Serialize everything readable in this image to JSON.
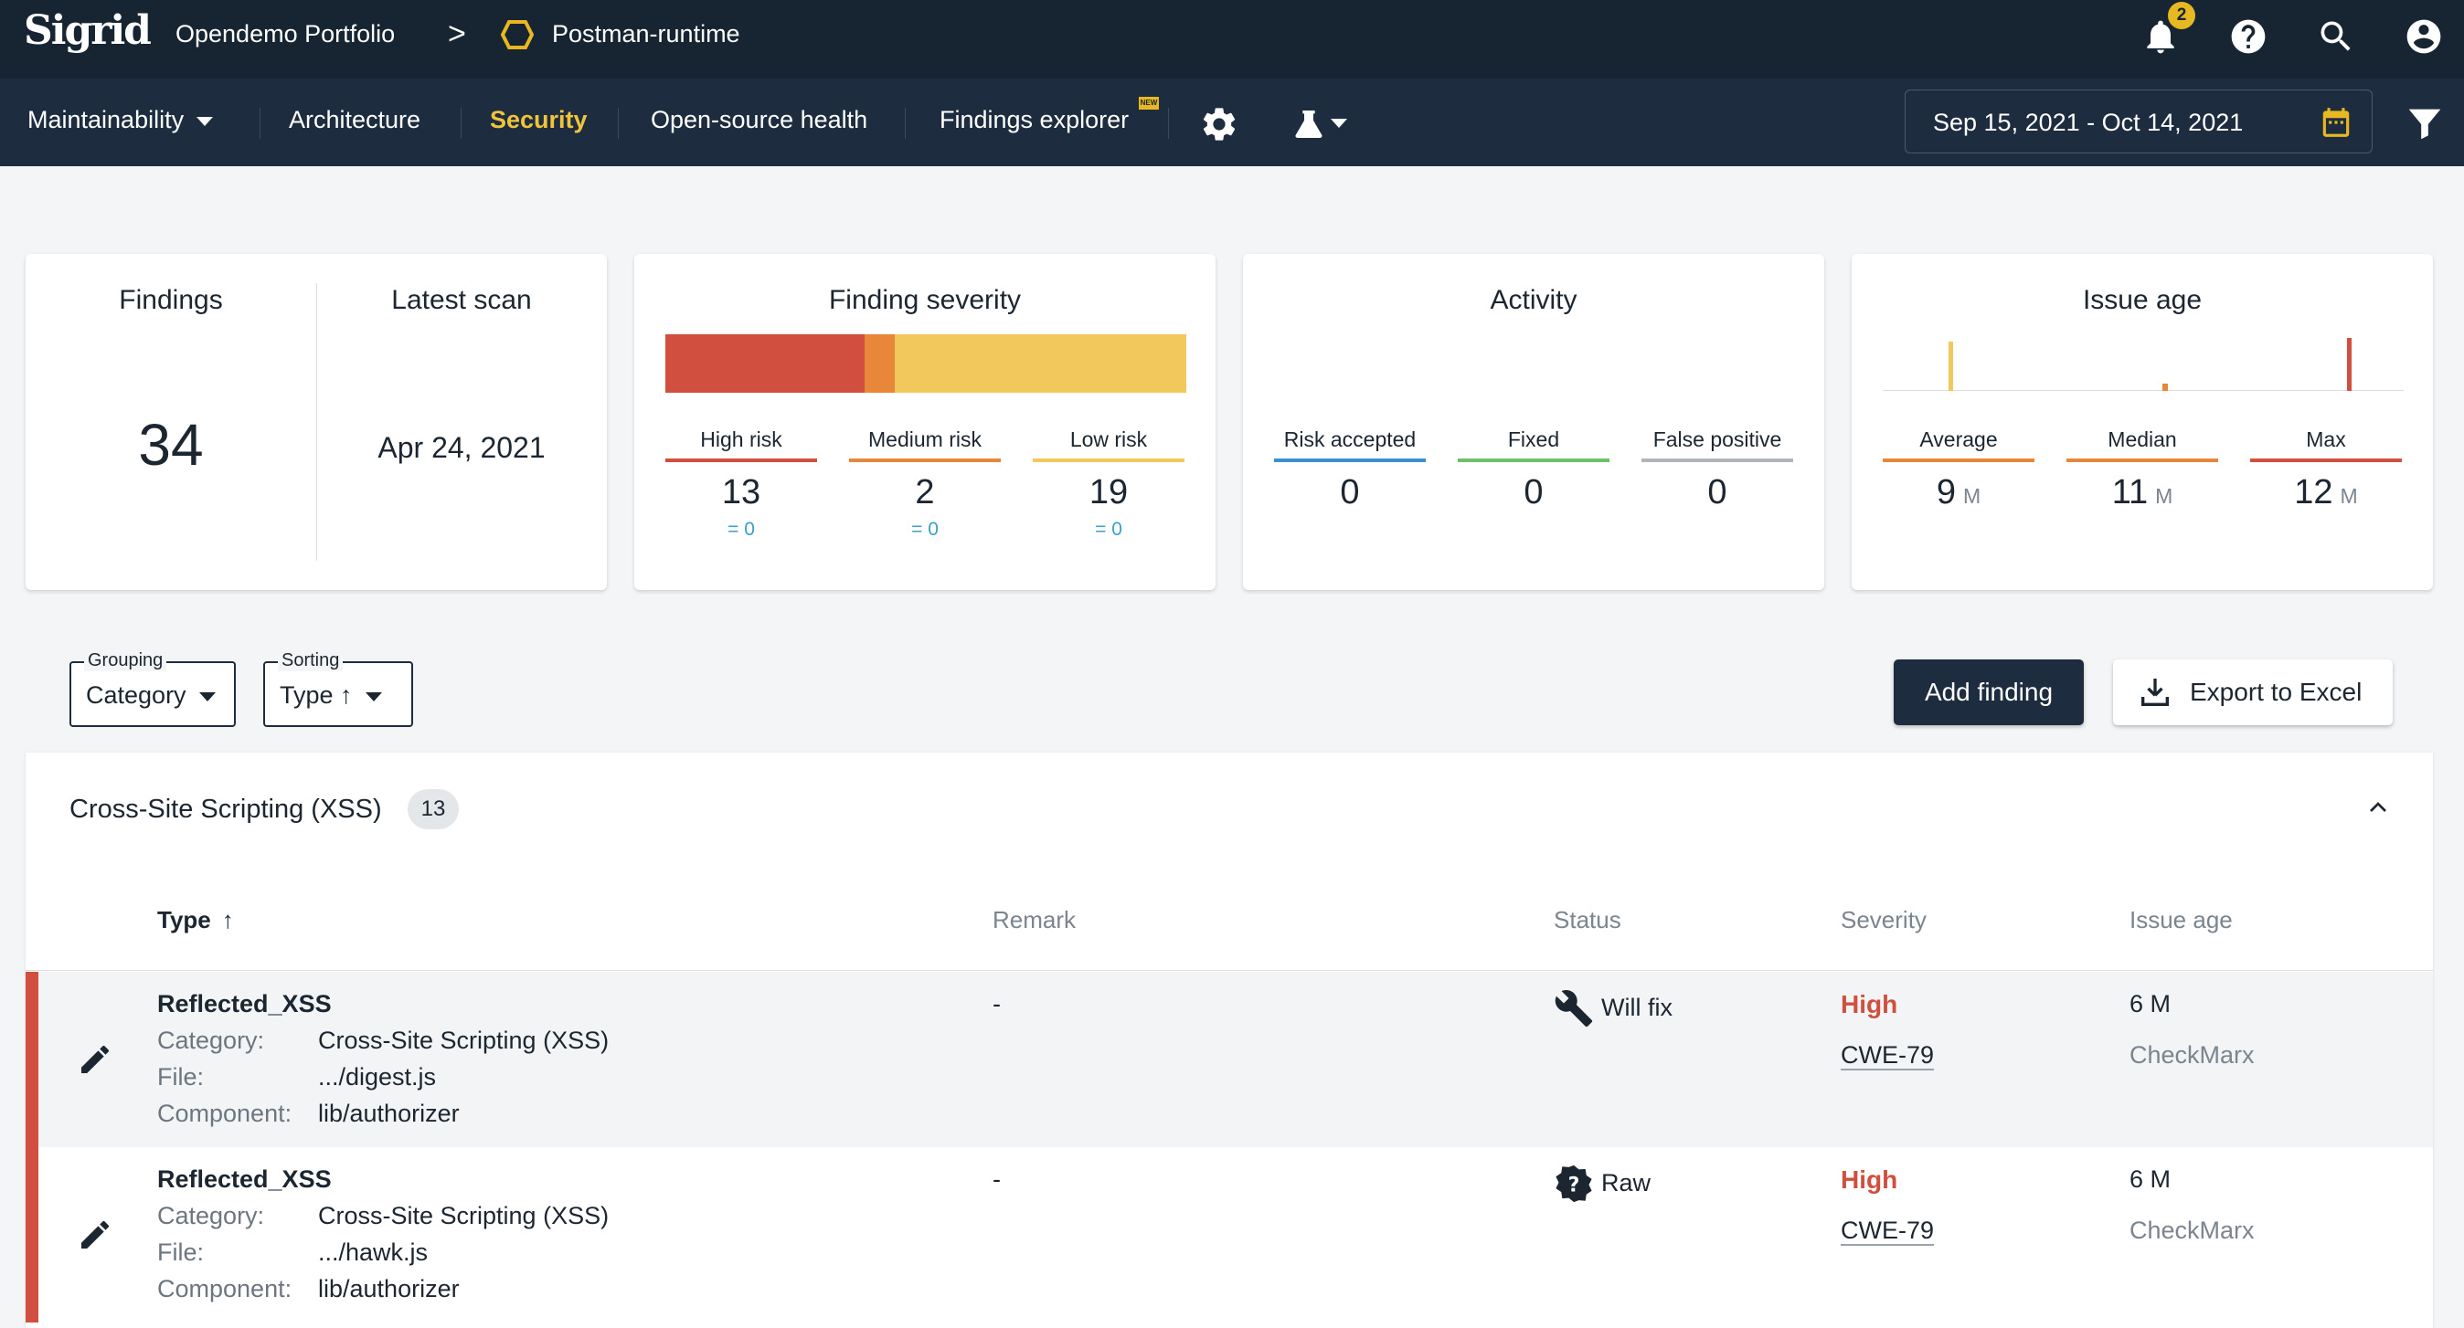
{
  "topbar": {
    "logo": "Sigrid",
    "portfolio": "Opendemo Portfolio",
    "separator": ">",
    "project": "Postman-runtime",
    "notification_count": "2",
    "icons": [
      "bell-icon",
      "help-icon",
      "search-icon",
      "account-icon"
    ]
  },
  "nav": {
    "items": [
      {
        "label": "Maintainability"
      },
      {
        "label": "Architecture"
      },
      {
        "label": "Security"
      },
      {
        "label": "Open-source health"
      },
      {
        "label": "Findings explorer"
      }
    ],
    "active": "Security",
    "new_tag": "NEW",
    "date_range": "Sep 15, 2021 - Oct 14, 2021"
  },
  "cards": {
    "findings": {
      "title": "Findings",
      "value": "34"
    },
    "latest_scan": {
      "title": "Latest scan",
      "value": "Apr 24, 2021"
    },
    "severity": {
      "title": "Finding severity",
      "high": {
        "label": "High risk",
        "value": "13",
        "delta": "= 0"
      },
      "medium": {
        "label": "Medium risk",
        "value": "2",
        "delta": "= 0"
      },
      "low": {
        "label": "Low risk",
        "value": "19",
        "delta": "= 0"
      }
    },
    "activity": {
      "title": "Activity",
      "risk_accepted": {
        "label": "Risk accepted",
        "value": "0"
      },
      "fixed": {
        "label": "Fixed",
        "value": "0"
      },
      "false_positive": {
        "label": "False positive",
        "value": "0"
      }
    },
    "issue_age": {
      "title": "Issue age",
      "average": {
        "label": "Average",
        "value": "9",
        "unit": "M"
      },
      "median": {
        "label": "Median",
        "value": "11",
        "unit": "M"
      },
      "max": {
        "label": "Max",
        "value": "12",
        "unit": "M"
      }
    }
  },
  "colors": {
    "high": "#d14f3e",
    "medium": "#e8873a",
    "low": "#f2c75c",
    "risk_accepted": "#3a8fd1",
    "fixed": "#6cc06a",
    "false_positive": "#b0b5ba",
    "accent": "#f0c43a"
  },
  "controls": {
    "grouping": {
      "legend": "Grouping",
      "value": "Category"
    },
    "sorting": {
      "legend": "Sorting",
      "value": "Type ↑"
    },
    "add_finding": "Add finding",
    "export": "Export to Excel"
  },
  "group": {
    "title": "Cross-Site Scripting (XSS)",
    "count": "13",
    "columns": {
      "type": "Type",
      "remark": "Remark",
      "status": "Status",
      "severity": "Severity",
      "issue_age": "Issue age"
    },
    "meta_keys": {
      "category": "Category:",
      "file": "File:",
      "component": "Component:"
    },
    "rows": [
      {
        "type": "Reflected_XSS",
        "category": "Cross-Site Scripting (XSS)",
        "file": ".../digest.js",
        "component": "lib/authorizer",
        "remark": "-",
        "status": "Will fix",
        "status_icon": "wrench-icon",
        "severity": "High",
        "cwe": "CWE-79",
        "age": "6 M",
        "tool": "CheckMarx"
      },
      {
        "type": "Reflected_XSS",
        "category": "Cross-Site Scripting (XSS)",
        "file": ".../hawk.js",
        "component": "lib/authorizer",
        "remark": "-",
        "status": "Raw",
        "status_icon": "question-badge-icon",
        "severity": "High",
        "cwe": "CWE-79",
        "age": "6 M",
        "tool": "CheckMarx"
      }
    ]
  }
}
